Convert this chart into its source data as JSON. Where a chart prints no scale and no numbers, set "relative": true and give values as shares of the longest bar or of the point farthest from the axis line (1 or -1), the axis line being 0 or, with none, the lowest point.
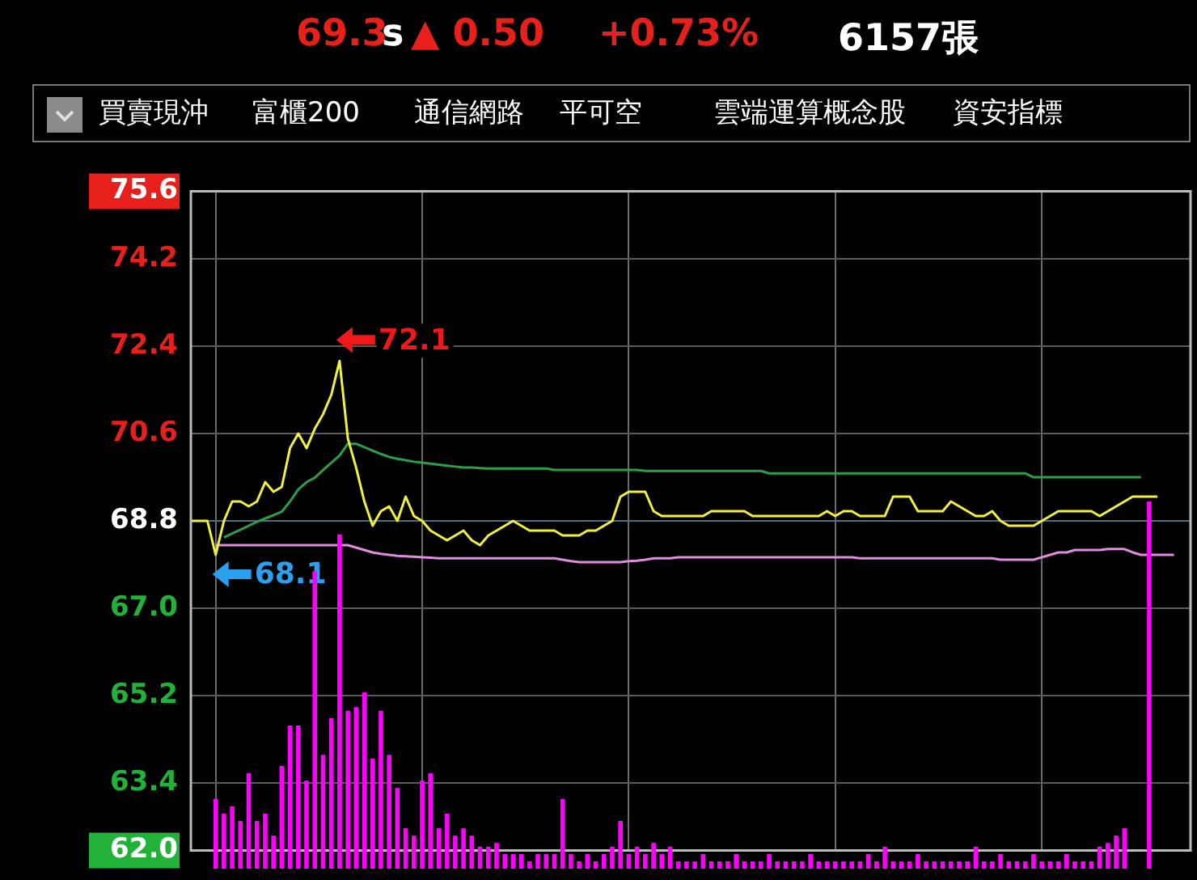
{
  "chart_data": [
    {
      "type": "line",
      "annotations": [
        "69.3",
        "s",
        "▲ 0.50",
        "+0.73%",
        "6157張",
        "買賣現沖",
        "富櫃200",
        "通信網路",
        "平可空",
        "雲端運算概念股",
        "資安指標",
        "72.1",
        "68.1"
      ],
      "categories": [
        null,
        null,
        null,
        null,
        null,
        null,
        null,
        null,
        null,
        null,
        null,
        null,
        null,
        null,
        null,
        null,
        null,
        null,
        null,
        null,
        null,
        null,
        null,
        null,
        null,
        null,
        null,
        null,
        null,
        null,
        null,
        null,
        null,
        null,
        null,
        null,
        null,
        null,
        null,
        null,
        null,
        null,
        null,
        null,
        null,
        null,
        null,
        null,
        null,
        null,
        null,
        null,
        null,
        null,
        null,
        null,
        null,
        null,
        null,
        null,
        null,
        null,
        null,
        null,
        null,
        null,
        null,
        null,
        null,
        null,
        null,
        null,
        null,
        null,
        null,
        null,
        null,
        null,
        null,
        null,
        null,
        null,
        null,
        null,
        null,
        null,
        null,
        null,
        null,
        null,
        null,
        null,
        null,
        null,
        null,
        null,
        null,
        null,
        null,
        null,
        null,
        null,
        null,
        null,
        null,
        null,
        null,
        null,
        null,
        null,
        null,
        null,
        null,
        null,
        null,
        null,
        null,
        null,
        null,
        null,
        null,
        null
      ],
      "series": [
        {
          "color": "#f2f03c",
          "values": [
            68.8,
            68.8,
            68.8,
            68.1,
            68.8,
            69.2,
            69.2,
            69.1,
            69.2,
            69.6,
            69.4,
            69.5,
            70.3,
            70.6,
            70.3,
            70.7,
            71.0,
            71.4,
            72.1,
            70.5,
            69.9,
            69.2,
            68.7,
            69.0,
            69.1,
            68.8,
            69.3,
            68.9,
            68.8,
            68.6,
            68.5,
            68.4,
            68.5,
            68.6,
            68.4,
            68.3,
            68.5,
            68.6,
            68.7,
            68.8,
            68.7,
            68.6,
            68.6,
            68.6,
            68.6,
            68.5,
            68.5,
            68.5,
            68.6,
            68.6,
            68.7,
            68.8,
            69.3,
            69.4,
            69.4,
            69.4,
            69.0,
            68.9,
            68.9,
            68.9,
            68.9,
            68.9,
            68.9,
            69.0,
            69.0,
            69.0,
            69.0,
            69.0,
            68.9,
            68.9,
            68.9,
            68.9,
            68.9,
            68.9,
            68.9,
            68.9,
            68.9,
            69.0,
            68.9,
            69.0,
            69.0,
            68.9,
            68.9,
            68.9,
            68.9,
            69.3,
            69.3,
            69.3,
            69.0,
            69.0,
            69.0,
            69.0,
            69.2,
            69.1,
            69.0,
            68.9,
            68.9,
            69.0,
            68.8,
            68.7,
            68.7,
            68.7,
            68.7,
            68.8,
            68.9,
            69.0,
            69.0,
            69.0,
            69.0,
            69.0,
            68.9,
            69.0,
            69.1,
            69.2,
            69.3,
            69.3,
            69.3,
            69.3,
            null,
            null,
            null,
            null
          ]
        },
        {
          "color": "#2e9e4a",
          "values": [
            null,
            null,
            null,
            null,
            68.46,
            68.54,
            68.62,
            68.7,
            68.78,
            68.85,
            68.92,
            68.99,
            69.2,
            69.45,
            69.6,
            69.69,
            69.85,
            70.0,
            70.15,
            70.39,
            70.39,
            70.32,
            70.25,
            70.18,
            70.12,
            70.08,
            70.05,
            70.02,
            70.0,
            69.98,
            69.96,
            69.94,
            69.92,
            69.9,
            69.9,
            69.89,
            69.88,
            69.88,
            69.88,
            69.88,
            69.88,
            69.88,
            69.88,
            69.88,
            69.85,
            69.85,
            69.85,
            69.85,
            69.85,
            69.85,
            69.85,
            69.85,
            69.85,
            69.85,
            69.85,
            69.83,
            69.83,
            69.83,
            69.83,
            69.83,
            69.83,
            69.83,
            69.83,
            69.83,
            69.83,
            69.83,
            69.83,
            69.83,
            69.83,
            69.83,
            69.78,
            69.78,
            69.78,
            69.78,
            69.78,
            69.78,
            69.78,
            69.78,
            69.78,
            69.78,
            69.78,
            69.78,
            69.78,
            69.78,
            69.78,
            69.78,
            69.78,
            69.78,
            69.78,
            69.78,
            69.78,
            69.78,
            69.78,
            69.78,
            69.78,
            69.78,
            69.78,
            69.78,
            69.78,
            69.78,
            69.78,
            69.78,
            69.7,
            69.7,
            69.7,
            69.7,
            69.7,
            69.7,
            69.7,
            69.7,
            69.7,
            69.7,
            69.7,
            69.7,
            69.7,
            69.7,
            null,
            null,
            null,
            null,
            null,
            null
          ]
        },
        {
          "color": "#e08ce0",
          "values": [
            null,
            null,
            null,
            68.3,
            68.3,
            68.3,
            68.3,
            68.3,
            68.3,
            68.3,
            68.3,
            68.3,
            68.3,
            68.3,
            68.3,
            68.3,
            68.3,
            68.3,
            68.3,
            68.3,
            68.25,
            68.2,
            68.15,
            68.12,
            68.1,
            68.08,
            68.07,
            68.06,
            68.05,
            68.04,
            68.03,
            68.03,
            68.03,
            68.03,
            68.03,
            68.03,
            68.03,
            68.03,
            68.03,
            68.03,
            68.03,
            68.03,
            68.03,
            68.03,
            68.03,
            68.0,
            67.97,
            67.95,
            67.95,
            67.95,
            67.95,
            67.95,
            67.95,
            67.97,
            67.98,
            68.0,
            68.03,
            68.03,
            68.03,
            68.05,
            68.05,
            68.05,
            68.05,
            68.05,
            68.05,
            68.05,
            68.05,
            68.05,
            68.05,
            68.05,
            68.05,
            68.05,
            68.05,
            68.05,
            68.05,
            68.05,
            68.05,
            68.05,
            68.05,
            68.05,
            68.05,
            68.03,
            68.03,
            68.03,
            68.03,
            68.03,
            68.03,
            68.03,
            68.03,
            68.03,
            68.03,
            68.03,
            68.03,
            68.03,
            68.03,
            68.03,
            68.03,
            68.03,
            68.0,
            68.0,
            68.0,
            68.0,
            68.0,
            68.05,
            68.1,
            68.15,
            68.15,
            68.2,
            68.2,
            68.2,
            68.2,
            68.22,
            68.22,
            68.22,
            68.15,
            68.1,
            68.1,
            68.1,
            68.1,
            68.1,
            null,
            null
          ]
        }
      ],
      "ylim": [
        62.0,
        75.6
      ],
      "yticks": [
        {
          "value": 62.0,
          "label": "62.0"
        },
        {
          "value": 63.4,
          "label": "63.4"
        },
        {
          "value": 65.2,
          "label": "65.2"
        },
        {
          "value": 67.0,
          "label": "67.0"
        },
        {
          "value": 68.8,
          "label": "68.8"
        },
        {
          "value": 70.6,
          "label": "70.6"
        },
        {
          "value": 72.4,
          "label": "72.4"
        },
        {
          "value": 74.2,
          "label": "74.2"
        },
        {
          "value": 75.6,
          "label": "75.6"
        }
      ],
      "ref_lines": [
        {
          "axis": "y",
          "value": 68.8,
          "color": "#4f6f80"
        }
      ],
      "grid": true,
      "legend": false,
      "tick_labels": "y",
      "marker": "none",
      "line_style": "solid"
    },
    {
      "type": "bar",
      "relative": true,
      "color": "#ff00ff",
      "categories": [
        null,
        null,
        null,
        null,
        null,
        null,
        null,
        null,
        null,
        null,
        null,
        null,
        null,
        null,
        null,
        null,
        null,
        null,
        null,
        null,
        null,
        null,
        null,
        null,
        null,
        null,
        null,
        null,
        null,
        null,
        null,
        null,
        null,
        null,
        null,
        null,
        null,
        null,
        null,
        null,
        null,
        null,
        null,
        null,
        null,
        null,
        null,
        null,
        null,
        null,
        null,
        null,
        null,
        null,
        null,
        null,
        null,
        null,
        null,
        null,
        null,
        null,
        null,
        null,
        null,
        null,
        null,
        null,
        null,
        null,
        null,
        null,
        null,
        null,
        null,
        null,
        null,
        null,
        null,
        null,
        null,
        null,
        null,
        null,
        null,
        null,
        null,
        null,
        null,
        null,
        null,
        null,
        null,
        null,
        null,
        null,
        null,
        null,
        null,
        null,
        null,
        null,
        null,
        null,
        null,
        null,
        null,
        null,
        null,
        null,
        null,
        null,
        null,
        null,
        null,
        null,
        null,
        null,
        null,
        null,
        null,
        null
      ],
      "values": [
        null,
        null,
        null,
        0.19,
        0.15,
        0.17,
        0.13,
        0.26,
        0.13,
        0.15,
        0.09,
        0.28,
        0.39,
        0.39,
        0.24,
        0.81,
        0.31,
        0.41,
        0.91,
        0.43,
        0.44,
        0.48,
        0.3,
        0.43,
        0.31,
        0.22,
        0.11,
        0.09,
        0.24,
        0.26,
        0.11,
        0.15,
        0.09,
        0.11,
        0.09,
        0.06,
        0.06,
        0.07,
        0.04,
        0.04,
        0.04,
        0.02,
        0.04,
        0.04,
        0.04,
        0.19,
        0.04,
        0.02,
        0.04,
        0.02,
        0.04,
        0.06,
        0.13,
        0.04,
        0.06,
        0.04,
        0.07,
        0.04,
        0.06,
        0.02,
        0.02,
        0.02,
        0.04,
        0.02,
        0.02,
        0.02,
        0.04,
        0.02,
        0.02,
        0.02,
        0.04,
        0.02,
        0.02,
        0.02,
        0.02,
        0.04,
        0.02,
        0.02,
        0.02,
        0.02,
        0.02,
        0.02,
        0.04,
        0.02,
        0.06,
        0.02,
        0.02,
        0.02,
        0.04,
        0.02,
        0.02,
        0.02,
        0.02,
        0.02,
        0.02,
        0.06,
        0.02,
        0.02,
        0.04,
        0.02,
        0.02,
        0.02,
        0.04,
        0.02,
        0.02,
        0.02,
        0.04,
        0.02,
        0.02,
        0.02,
        0.06,
        0.07,
        0.09,
        0.11,
        0,
        0,
        1,
        null,
        null,
        null,
        null,
        null
      ]
    }
  ]
}
